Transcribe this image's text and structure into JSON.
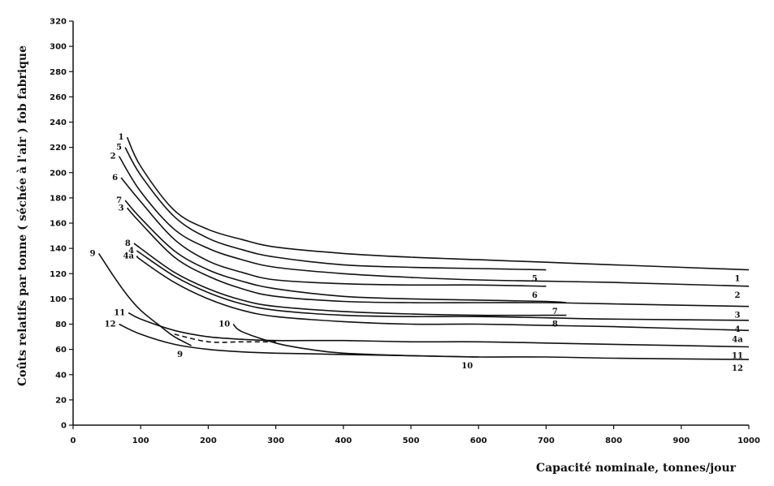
{
  "chart_data": {
    "type": "line",
    "xlabel": "Capacité nominale, tonnes/jour",
    "ylabel": "Coûts relatifs par tonne ( séchée à l'air ) fob fabrique",
    "xlim": [
      0,
      1000
    ],
    "ylim": [
      0,
      320
    ],
    "x_ticks": [
      "0",
      "100",
      "200",
      "300",
      "400",
      "500",
      "600",
      "700",
      "800",
      "900",
      "1000"
    ],
    "y_ticks": [
      "0",
      "20",
      "40",
      "60",
      "80",
      "100",
      "120",
      "140",
      "160",
      "180",
      "200",
      "220",
      "240",
      "260",
      "280",
      "300",
      "320"
    ],
    "grid": false,
    "legend": "none",
    "series": [
      {
        "name": "1",
        "x": [
          80,
          100,
          150,
          200,
          250,
          300,
          400,
          500,
          600,
          700,
          800,
          1000
        ],
        "y": [
          228,
          205,
          170,
          155,
          147,
          141,
          136,
          133,
          131,
          129,
          127,
          123
        ],
        "label_start": true,
        "label_end": true
      },
      {
        "name": "5",
        "x": [
          77,
          100,
          150,
          200,
          250,
          300,
          400,
          500,
          600,
          700
        ],
        "y": [
          220,
          198,
          165,
          148,
          139,
          133,
          127,
          125,
          124,
          123
        ],
        "label_start": true,
        "label_end": true
      },
      {
        "name": "2",
        "x": [
          68,
          100,
          150,
          200,
          250,
          300,
          400,
          500,
          600,
          700,
          800,
          1000
        ],
        "y": [
          213,
          185,
          155,
          140,
          131,
          125,
          120,
          117,
          115,
          114,
          113,
          110
        ],
        "label_start": true,
        "label_end": true
      },
      {
        "name": "6",
        "x": [
          71,
          100,
          150,
          200,
          250,
          300,
          400,
          500,
          600,
          700
        ],
        "y": [
          196,
          177,
          147,
          130,
          121,
          115,
          112,
          111,
          111,
          110
        ],
        "label_start": true,
        "label_end": true
      },
      {
        "name": "7",
        "x": [
          77,
          100,
          150,
          200,
          250,
          300,
          400,
          500,
          600,
          700,
          730
        ],
        "y": [
          178,
          164,
          138,
          123,
          114,
          108,
          102,
          100,
          99,
          98,
          97
        ],
        "label_start": true,
        "label_end": true
      },
      {
        "name": "3",
        "x": [
          80,
          100,
          150,
          200,
          250,
          300,
          400,
          500,
          600,
          700,
          800,
          1000
        ],
        "y": [
          172,
          160,
          133,
          118,
          108,
          102,
          98,
          97,
          97,
          97,
          96,
          94
        ],
        "label_start": true,
        "label_end": true
      },
      {
        "name": "8",
        "x": [
          90,
          100,
          150,
          200,
          250,
          300,
          400,
          500,
          600,
          700,
          730
        ],
        "y": [
          144,
          140,
          121,
          108,
          99,
          94,
          90,
          88,
          87,
          87,
          87
        ],
        "label_start": true,
        "label_end": true
      },
      {
        "name": "4",
        "x": [
          95,
          100,
          150,
          200,
          250,
          300,
          400,
          500,
          600,
          700,
          800,
          1000
        ],
        "y": [
          138,
          136,
          118,
          105,
          96,
          91,
          87,
          86,
          86,
          85,
          84,
          83
        ],
        "label_start": true,
        "label_end": true
      },
      {
        "name": "4a",
        "x": [
          95,
          100,
          150,
          200,
          250,
          300,
          400,
          500,
          600,
          700,
          800,
          1000
        ],
        "y": [
          134,
          131,
          113,
          100,
          91,
          86,
          82,
          80,
          80,
          79,
          78,
          75
        ],
        "label_start": true,
        "label_end": true
      },
      {
        "name": "9",
        "x": [
          38,
          60,
          80,
          100,
          130,
          150,
          175
        ],
        "y": [
          136,
          118,
          103,
          91,
          78,
          70,
          63
        ],
        "label_start": true,
        "label_end": true
      },
      {
        "name": "9 (pointillé)",
        "x": [
          150,
          200,
          250,
          300
        ],
        "y": [
          72,
          66,
          66,
          66
        ],
        "dashed": true
      },
      {
        "name": "11",
        "x": [
          82,
          100,
          150,
          200,
          250,
          300,
          400,
          500,
          600,
          700,
          800,
          1000
        ],
        "y": [
          89,
          84,
          75,
          70,
          68,
          67,
          67,
          66,
          66,
          65,
          64,
          62
        ],
        "label_start": true,
        "label_end": true
      },
      {
        "name": "10",
        "x": [
          237,
          250,
          300,
          350,
          400,
          500,
          600
        ],
        "y": [
          80,
          74,
          65,
          60,
          57,
          55,
          54
        ],
        "label_start": true,
        "label_end": true
      },
      {
        "name": "12",
        "x": [
          68,
          100,
          150,
          200,
          250,
          300,
          400,
          500,
          600,
          700,
          800,
          1000
        ],
        "y": [
          80,
          72,
          64,
          60,
          58,
          57,
          56,
          55,
          54,
          54,
          53,
          52
        ],
        "label_start": true,
        "label_end": true
      }
    ],
    "curve_labels": [
      {
        "text": "1",
        "at": "start",
        "series": "1"
      },
      {
        "text": "5",
        "at": "start",
        "series": "5"
      },
      {
        "text": "2",
        "at": "start",
        "series": "2"
      },
      {
        "text": "6",
        "at": "start",
        "series": "6"
      },
      {
        "text": "7",
        "at": "start",
        "series": "7"
      },
      {
        "text": "3",
        "at": "start",
        "series": "3"
      },
      {
        "text": "8",
        "at": "start",
        "series": "8"
      },
      {
        "text": "4",
        "at": "start",
        "series": "4"
      },
      {
        "text": "4a",
        "at": "start",
        "series": "4a"
      },
      {
        "text": "9",
        "at": "start",
        "series": "9"
      },
      {
        "text": "11",
        "at": "start",
        "series": "11"
      },
      {
        "text": "12",
        "at": "start",
        "series": "12"
      },
      {
        "text": "10",
        "at": "start",
        "series": "10"
      },
      {
        "text": "9",
        "at": "end",
        "series": "9"
      },
      {
        "text": "5",
        "at": "end",
        "series": "5"
      },
      {
        "text": "6",
        "at": "end",
        "series": "6"
      },
      {
        "text": "7",
        "at": "end",
        "series": "7"
      },
      {
        "text": "8",
        "at": "end",
        "series": "8"
      },
      {
        "text": "10",
        "at": "end",
        "series": "10"
      },
      {
        "text": "1",
        "at": "end",
        "series": "1"
      },
      {
        "text": "2",
        "at": "end",
        "series": "2"
      },
      {
        "text": "3",
        "at": "end",
        "series": "3"
      },
      {
        "text": "4",
        "at": "end",
        "series": "4"
      },
      {
        "text": "4a",
        "at": "end",
        "series": "4a"
      },
      {
        "text": "11",
        "at": "end",
        "series": "11"
      },
      {
        "text": "12",
        "at": "end",
        "series": "12"
      }
    ]
  }
}
